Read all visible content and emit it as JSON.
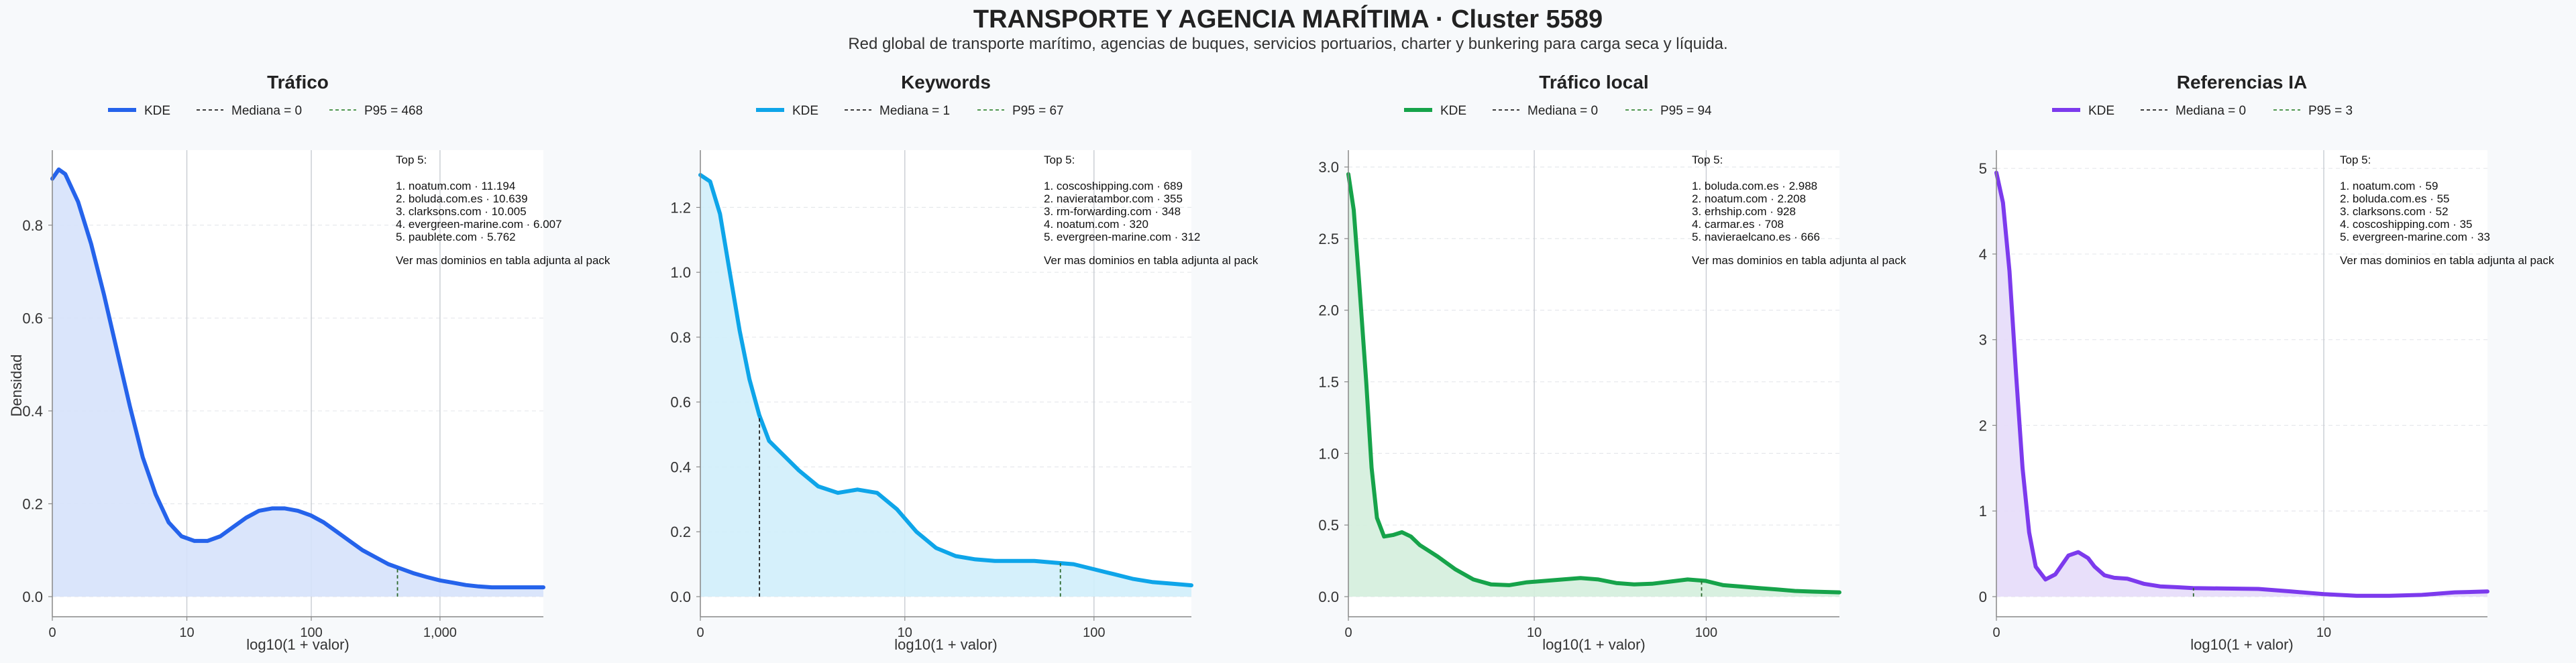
{
  "header": {
    "title": "TRANSPORTE Y AGENCIA MARÍTIMA · Cluster 5589",
    "subtitle": "Red global de transporte marítimo, agencias de buques, servicios portuarios, charter y bunkering para carga seca y líquida."
  },
  "shared": {
    "ylabel": "Densidad",
    "xlabel": "log10(1 + valor)",
    "legend_kde": "KDE",
    "top_header": "Top 5:",
    "footer": "Ver mas dominios en tabla adjunta al pack"
  },
  "chart_data": [
    {
      "type": "area",
      "title": "Tráfico",
      "color": "#2563eb",
      "fill": "#d6e2fb",
      "xlim": [
        0,
        3.8
      ],
      "ylim": [
        0,
        0.95
      ],
      "yticks": [
        0.0,
        0.2,
        0.4,
        0.6,
        0.8
      ],
      "ytick_labels": [
        "0.0",
        "0.2",
        "0.4",
        "0.6",
        "0.8"
      ],
      "xticks": [
        0,
        1.041,
        2.004,
        3.0
      ],
      "xtick_labels": [
        "0",
        "10",
        "100",
        "1,000"
      ],
      "median_label": "Mediana = 0",
      "median": 0,
      "p95_label": "P95 = 468",
      "p95": 2.671,
      "x": [
        0,
        0.05,
        0.1,
        0.2,
        0.3,
        0.4,
        0.5,
        0.6,
        0.7,
        0.8,
        0.9,
        1.0,
        1.1,
        1.2,
        1.3,
        1.4,
        1.5,
        1.6,
        1.7,
        1.8,
        1.9,
        2.0,
        2.1,
        2.2,
        2.3,
        2.4,
        2.5,
        2.6,
        2.7,
        2.8,
        2.9,
        3.0,
        3.1,
        3.2,
        3.3,
        3.4,
        3.5,
        3.6,
        3.7,
        3.8
      ],
      "y": [
        0.9,
        0.92,
        0.91,
        0.85,
        0.76,
        0.65,
        0.53,
        0.41,
        0.3,
        0.22,
        0.16,
        0.13,
        0.12,
        0.12,
        0.13,
        0.15,
        0.17,
        0.185,
        0.19,
        0.19,
        0.185,
        0.175,
        0.16,
        0.14,
        0.12,
        0.1,
        0.085,
        0.07,
        0.06,
        0.05,
        0.042,
        0.035,
        0.03,
        0.025,
        0.022,
        0.02,
        0.02,
        0.02,
        0.02,
        0.02
      ],
      "top5": [
        "1. noatum.com · 11.194",
        "2. boluda.com.es · 10.639",
        "3. clarksons.com · 10.005",
        "4. evergreen-marine.com · 6.007",
        "5. paublete.com · 5.762"
      ]
    },
    {
      "type": "area",
      "title": "Keywords",
      "color": "#0ea5e9",
      "fill": "#d0eefb",
      "xlim": [
        0,
        2.5
      ],
      "ylim": [
        0,
        1.36
      ],
      "yticks": [
        0.0,
        0.2,
        0.4,
        0.6,
        0.8,
        1.0,
        1.2
      ],
      "ytick_labels": [
        "0.0",
        "0.2",
        "0.4",
        "0.6",
        "0.8",
        "1.0",
        "1.2"
      ],
      "xticks": [
        0,
        1.041,
        2.004
      ],
      "xtick_labels": [
        "0",
        "10",
        "100"
      ],
      "median_label": "Mediana = 1",
      "median": 0.301,
      "p95_label": "P95 = 67",
      "p95": 1.833,
      "x": [
        0,
        0.05,
        0.1,
        0.15,
        0.2,
        0.25,
        0.3,
        0.35,
        0.4,
        0.5,
        0.6,
        0.7,
        0.8,
        0.9,
        1.0,
        1.1,
        1.2,
        1.3,
        1.4,
        1.5,
        1.6,
        1.7,
        1.8,
        1.9,
        2.0,
        2.1,
        2.2,
        2.3,
        2.4,
        2.5
      ],
      "y": [
        1.3,
        1.28,
        1.18,
        1.0,
        0.82,
        0.67,
        0.56,
        0.48,
        0.45,
        0.39,
        0.34,
        0.32,
        0.33,
        0.32,
        0.27,
        0.2,
        0.15,
        0.125,
        0.115,
        0.11,
        0.11,
        0.11,
        0.105,
        0.1,
        0.085,
        0.07,
        0.055,
        0.045,
        0.04,
        0.035
      ],
      "top5": [
        "1. coscoshipping.com · 689",
        "2. navieratambor.com · 355",
        "3. rm-forwarding.com · 348",
        "4. noatum.com · 320",
        "5. evergreen-marine.com · 312"
      ]
    },
    {
      "type": "area",
      "title": "Tráfico local",
      "color": "#16a34a",
      "fill": "#d4eedd",
      "xlim": [
        0,
        2.75
      ],
      "ylim": [
        0,
        3.08
      ],
      "yticks": [
        0.0,
        0.5,
        1.0,
        1.5,
        2.0,
        2.5,
        3.0
      ],
      "ytick_labels": [
        "0.0",
        "0.5",
        "1.0",
        "1.5",
        "2.0",
        "2.5",
        "3.0"
      ],
      "xticks": [
        0,
        1.041,
        2.004
      ],
      "xtick_labels": [
        "0",
        "10",
        "100"
      ],
      "median_label": "Mediana = 0",
      "median": 0,
      "p95_label": "P95 = 94",
      "p95": 1.978,
      "x": [
        0,
        0.03,
        0.06,
        0.1,
        0.13,
        0.16,
        0.2,
        0.25,
        0.3,
        0.35,
        0.4,
        0.45,
        0.5,
        0.6,
        0.7,
        0.8,
        0.9,
        1.0,
        1.1,
        1.2,
        1.3,
        1.4,
        1.5,
        1.6,
        1.7,
        1.8,
        1.9,
        2.0,
        2.1,
        2.2,
        2.3,
        2.4,
        2.5,
        2.6,
        2.75
      ],
      "y": [
        2.95,
        2.7,
        2.2,
        1.5,
        0.9,
        0.55,
        0.42,
        0.43,
        0.45,
        0.42,
        0.36,
        0.32,
        0.28,
        0.19,
        0.12,
        0.085,
        0.08,
        0.1,
        0.11,
        0.12,
        0.13,
        0.12,
        0.095,
        0.085,
        0.09,
        0.105,
        0.12,
        0.11,
        0.08,
        0.07,
        0.06,
        0.05,
        0.04,
        0.035,
        0.03
      ],
      "top5": [
        "1. boluda.com.es · 2.988",
        "2. noatum.com · 2.208",
        "3. erhship.com · 928",
        "4. carmar.es · 708",
        "5. navieraelcano.es · 666"
      ]
    },
    {
      "type": "area",
      "title": "Referencias IA",
      "color": "#7c3aed",
      "fill": "#e6dcf9",
      "xlim": [
        0,
        1.5
      ],
      "ylim": [
        0,
        5.15
      ],
      "yticks": [
        0,
        1,
        2,
        3,
        4,
        5
      ],
      "ytick_labels": [
        "0",
        "1",
        "2",
        "3",
        "4",
        "5"
      ],
      "xticks": [
        0,
        1.0
      ],
      "xtick_labels": [
        "0",
        "10"
      ],
      "median_label": "Mediana = 0",
      "median": 0,
      "p95_label": "P95 = 3",
      "p95": 0.602,
      "x": [
        0,
        0.02,
        0.04,
        0.06,
        0.08,
        0.1,
        0.12,
        0.15,
        0.18,
        0.2,
        0.22,
        0.25,
        0.28,
        0.3,
        0.33,
        0.36,
        0.4,
        0.45,
        0.5,
        0.55,
        0.6,
        0.7,
        0.8,
        0.9,
        1.0,
        1.1,
        1.2,
        1.3,
        1.4,
        1.5
      ],
      "y": [
        4.95,
        4.6,
        3.8,
        2.6,
        1.5,
        0.75,
        0.35,
        0.2,
        0.26,
        0.37,
        0.48,
        0.52,
        0.45,
        0.35,
        0.25,
        0.22,
        0.21,
        0.15,
        0.12,
        0.11,
        0.1,
        0.095,
        0.09,
        0.06,
        0.03,
        0.01,
        0.01,
        0.02,
        0.05,
        0.06
      ],
      "top5": [
        "1. noatum.com · 59",
        "2. boluda.com.es · 55",
        "3. clarksons.com · 52",
        "4. coscoshipping.com · 35",
        "5. evergreen-marine.com · 33"
      ]
    }
  ]
}
